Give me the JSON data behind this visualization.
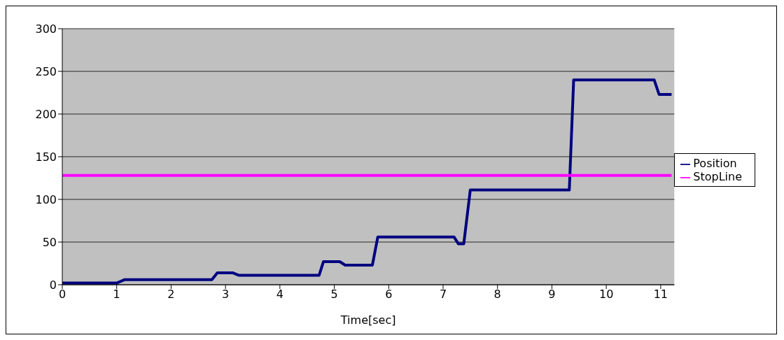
{
  "chart_data": {
    "type": "line",
    "xlabel": "Time[sec]",
    "xlim": [
      0,
      11.25
    ],
    "xticks": [
      0,
      1,
      2,
      3,
      4,
      5,
      6,
      7,
      8,
      9,
      10,
      11
    ],
    "ylim": [
      0,
      300
    ],
    "yticks": [
      0,
      50,
      100,
      150,
      200,
      250,
      300
    ],
    "grid": "y",
    "legend": "right",
    "marker": "none",
    "line_style": "solid",
    "series": [
      {
        "name": "Position",
        "color": "#000080",
        "x": [
          0,
          1.0,
          1.15,
          2.75,
          2.85,
          3.13,
          3.25,
          4.72,
          4.8,
          5.1,
          5.2,
          5.7,
          5.8,
          7.2,
          7.28,
          7.38,
          7.5,
          9.32,
          9.4,
          10.88,
          10.97,
          11.2
        ],
        "values": [
          2,
          2,
          6,
          6,
          14,
          14,
          11,
          11,
          27,
          27,
          23,
          23,
          56,
          56,
          48,
          48,
          111,
          111,
          240,
          240,
          223,
          223
        ]
      },
      {
        "name": "StopLine",
        "color": "#ff00ff",
        "x": [
          0,
          11.2
        ],
        "values": [
          128,
          128
        ]
      }
    ]
  }
}
